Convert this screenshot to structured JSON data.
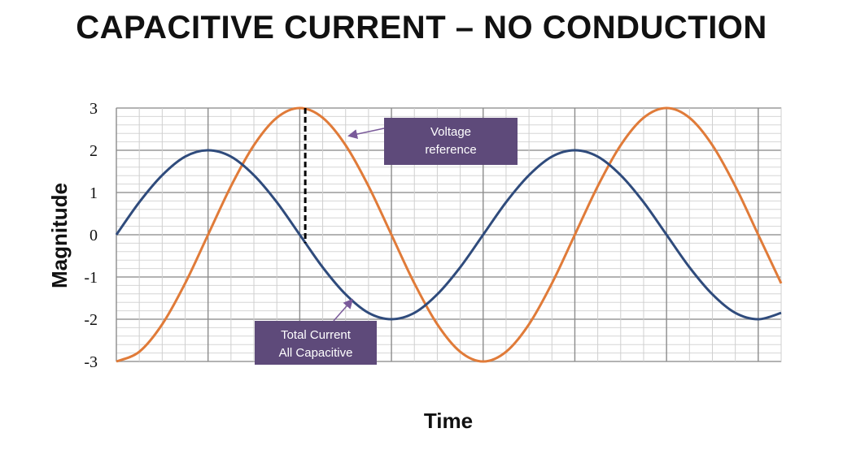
{
  "title": "Capacitive current – no conduction",
  "chart_data": {
    "type": "line",
    "title": "Capacitive current – no conduction",
    "xlabel": "Time",
    "ylabel": "Magnitude",
    "ylim": [
      -3,
      3
    ],
    "yticks": [
      "3",
      "2",
      "1",
      "0",
      "-1",
      "-2",
      "-3"
    ],
    "xlim": [
      0,
      3.625
    ],
    "x_unit": "cycles",
    "grid": true,
    "series": [
      {
        "color": "#E07B39",
        "amplitude": 3,
        "x": [
          0,
          0.125,
          0.25,
          0.375,
          0.5,
          0.625,
          0.75,
          0.875,
          1,
          1.125,
          1.25,
          1.375,
          1.5,
          1.625,
          1.75,
          1.875,
          2,
          2.125,
          2.25,
          2.375,
          2.5,
          2.625,
          2.75,
          2.875,
          3,
          3.125,
          3.25,
          3.375,
          3.5,
          3.625
        ],
        "values": [
          -3,
          -2.77,
          -2.12,
          -1.15,
          0,
          1.15,
          2.12,
          2.77,
          3,
          2.77,
          2.12,
          1.15,
          0,
          -1.15,
          -2.12,
          -2.77,
          -3,
          -2.77,
          -2.12,
          -1.15,
          0,
          1.15,
          2.12,
          2.77,
          3,
          2.77,
          2.12,
          1.15,
          0,
          -1.15
        ]
      },
      {
        "color": "#2F4B7C",
        "amplitude": 2,
        "x": [
          0,
          0.125,
          0.25,
          0.375,
          0.5,
          0.625,
          0.75,
          0.875,
          1,
          1.125,
          1.25,
          1.375,
          1.5,
          1.625,
          1.75,
          1.875,
          2,
          2.125,
          2.25,
          2.375,
          2.5,
          2.625,
          2.75,
          2.875,
          3,
          3.125,
          3.25,
          3.375,
          3.5,
          3.625
        ],
        "values": [
          0,
          0.77,
          1.41,
          1.85,
          2,
          1.85,
          1.41,
          0.77,
          0,
          -0.77,
          -1.41,
          -1.85,
          -2,
          -1.85,
          -1.41,
          -0.77,
          0,
          0.77,
          1.41,
          1.85,
          2,
          1.85,
          1.41,
          0.77,
          0,
          -0.77,
          -1.41,
          -1.85,
          -2,
          -1.85
        ]
      }
    ],
    "annotations": [
      {
        "text_lines": [
          "Voltage",
          "reference"
        ],
        "fill": "#5E4A7A",
        "points_to_x": 1.3
      },
      {
        "text_lines": [
          "Total Current",
          "All Capacitive"
        ],
        "fill": "#5E4A7A",
        "points_to_x": 1.25
      }
    ],
    "marker_line": {
      "x": 1.03,
      "y_from": 3,
      "y_to": -0.2,
      "style": "dashed",
      "color": "#000000"
    }
  }
}
